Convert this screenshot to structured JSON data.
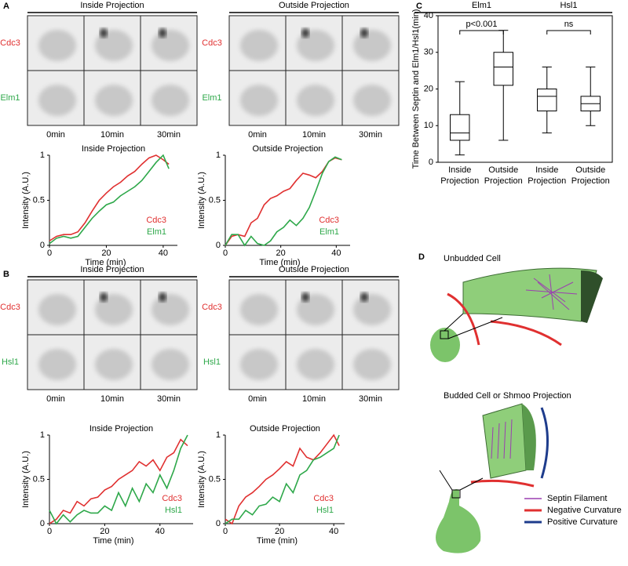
{
  "panel_labels": [
    "A",
    "B",
    "C",
    "D"
  ],
  "micrographs": [
    {
      "title": "Inside Projection",
      "rows": [
        "Cdc3",
        "Elm1"
      ],
      "times": [
        "0min",
        "10min",
        "30min"
      ]
    },
    {
      "title": "Outside Projection",
      "rows": [
        "Cdc3",
        "Elm1"
      ],
      "times": [
        "0min",
        "10min",
        "30min"
      ]
    },
    {
      "title": "Inside Projection",
      "rows": [
        "Cdc3",
        "Hsl1"
      ],
      "times": [
        "0min",
        "10min",
        "30min"
      ]
    },
    {
      "title": "Outside Projection",
      "rows": [
        "Cdc3",
        "Hsl1"
      ],
      "times": [
        "0min",
        "10min",
        "30min"
      ]
    }
  ],
  "chart_data": [
    {
      "type": "line",
      "title": "Inside Projection",
      "x_label": "Time (min)",
      "y_label": "Intensity (A.U.)",
      "x": [
        0,
        2.5,
        5,
        7.5,
        10,
        12.5,
        15,
        17.5,
        20,
        22.5,
        25,
        27.5,
        30,
        32.5,
        35,
        37.5,
        40,
        42
      ],
      "xlim": [
        0,
        45
      ],
      "xticks": [
        0,
        20,
        40
      ],
      "ylim": [
        0,
        1
      ],
      "yticks": [
        0,
        0.5,
        1
      ],
      "series": [
        {
          "name": "Cdc3",
          "color": "#e03030",
          "values": [
            0.05,
            0.1,
            0.12,
            0.12,
            0.15,
            0.25,
            0.38,
            0.5,
            0.58,
            0.65,
            0.7,
            0.77,
            0.82,
            0.9,
            0.97,
            1.0,
            0.95,
            0.9
          ]
        },
        {
          "name": "Elm1",
          "color": "#2ea84a",
          "values": [
            0.02,
            0.08,
            0.1,
            0.08,
            0.1,
            0.2,
            0.3,
            0.38,
            0.45,
            0.48,
            0.55,
            0.6,
            0.65,
            0.72,
            0.82,
            0.92,
            1.0,
            0.85
          ]
        }
      ]
    },
    {
      "type": "line",
      "title": "Outside Projection",
      "x_label": "Time (min)",
      "y_label": "Intensity (A.U.)",
      "x": [
        0,
        2.3,
        4.6,
        7,
        9.3,
        11.6,
        14,
        16.3,
        18.6,
        21,
        23.3,
        25.6,
        28,
        30.3,
        32.6,
        35,
        37.3,
        39.6,
        42
      ],
      "xlim": [
        0,
        45
      ],
      "xticks": [
        0,
        20,
        40
      ],
      "ylim": [
        0,
        1
      ],
      "yticks": [
        0,
        0.5,
        1
      ],
      "series": [
        {
          "name": "Cdc3",
          "color": "#e03030",
          "values": [
            0,
            0.1,
            0.12,
            0.1,
            0.25,
            0.3,
            0.45,
            0.52,
            0.55,
            0.6,
            0.63,
            0.72,
            0.8,
            0.78,
            0.75,
            0.82,
            0.93,
            0.97,
            0.95
          ]
        },
        {
          "name": "Elm1",
          "color": "#2ea84a",
          "values": [
            0,
            0.12,
            0.12,
            0,
            0.1,
            0.02,
            0,
            0.05,
            0.15,
            0.2,
            0.28,
            0.22,
            0.3,
            0.42,
            0.6,
            0.8,
            0.93,
            0.98,
            0.95
          ]
        }
      ]
    },
    {
      "type": "line",
      "title": "Inside Projection",
      "x_label": "Time (min)",
      "y_label": "Intensity (A.U.)",
      "x": [
        0,
        2.5,
        5,
        7.5,
        10,
        12.5,
        15,
        17.5,
        20,
        22.5,
        25,
        27.5,
        30,
        32.5,
        35,
        37.5,
        40,
        42.5,
        45,
        47.5,
        50
      ],
      "xlim": [
        0,
        52
      ],
      "xticks": [
        0,
        20,
        40
      ],
      "ylim": [
        0,
        1
      ],
      "yticks": [
        0,
        0.5,
        1
      ],
      "series": [
        {
          "name": "Cdc3",
          "color": "#e03030",
          "values": [
            0,
            0.05,
            0.15,
            0.12,
            0.25,
            0.2,
            0.28,
            0.3,
            0.38,
            0.42,
            0.5,
            0.55,
            0.6,
            0.7,
            0.65,
            0.72,
            0.6,
            0.75,
            0.8,
            0.95,
            0.88
          ]
        },
        {
          "name": "Hsl1",
          "color": "#2ea84a",
          "values": [
            0.15,
            0,
            0.1,
            0.02,
            0.1,
            0.15,
            0.12,
            0.12,
            0.2,
            0.15,
            0.35,
            0.2,
            0.4,
            0.25,
            0.45,
            0.35,
            0.55,
            0.4,
            0.6,
            0.85,
            1.0
          ]
        }
      ]
    },
    {
      "type": "line",
      "title": "Outside Projection",
      "x_label": "Time (min)",
      "y_label": "Intensity (A.U.)",
      "x": [
        0,
        2.5,
        5,
        7.5,
        10,
        12.5,
        15,
        17.5,
        20,
        22.5,
        25,
        27.5,
        30,
        32.5,
        35,
        37.5,
        40,
        42
      ],
      "xlim": [
        0,
        44
      ],
      "xticks": [
        0,
        20,
        40
      ],
      "ylim": [
        0,
        1
      ],
      "yticks": [
        0,
        0.5,
        1
      ],
      "series": [
        {
          "name": "Cdc3",
          "color": "#e03030",
          "values": [
            0.05,
            0.0,
            0.2,
            0.3,
            0.35,
            0.42,
            0.5,
            0.55,
            0.62,
            0.7,
            0.65,
            0.85,
            0.75,
            0.72,
            0.8,
            0.9,
            1.0,
            0.88
          ]
        },
        {
          "name": "Hsl1",
          "color": "#2ea84a",
          "values": [
            0,
            0.05,
            0.05,
            0.15,
            0.1,
            0.2,
            0.22,
            0.3,
            0.25,
            0.45,
            0.35,
            0.55,
            0.6,
            0.72,
            0.75,
            0.8,
            0.85,
            1.0
          ]
        }
      ]
    },
    {
      "type": "box",
      "y_label": "Time Between Septin and Elm1/Hsl1(min)",
      "categories": [
        "Inside Projection",
        "Outside Projection",
        "Inside Projection",
        "Outside Projection"
      ],
      "groups": [
        {
          "name": "Elm1",
          "annotation": "p<0.001"
        },
        {
          "name": "Hsl1",
          "annotation": "ns"
        }
      ],
      "ylim": [
        0,
        40
      ],
      "yticks": [
        0,
        10,
        20,
        30,
        40
      ],
      "boxes": [
        {
          "min": 2,
          "q1": 6,
          "median": 8,
          "q3": 13,
          "max": 22
        },
        {
          "min": 6,
          "q1": 21,
          "median": 26,
          "q3": 30,
          "max": 36
        },
        {
          "min": 8,
          "q1": 14,
          "median": 18,
          "q3": 20,
          "max": 26
        },
        {
          "min": 10,
          "q1": 14,
          "median": 16,
          "q3": 18,
          "max": 26
        }
      ]
    }
  ],
  "diagram": {
    "cells": [
      "Unbudded Cell",
      "Budded Cell or Shmoo Projection"
    ],
    "legend": [
      "Septin Filament",
      "Negative Curvature",
      "Positive Curvature"
    ]
  }
}
